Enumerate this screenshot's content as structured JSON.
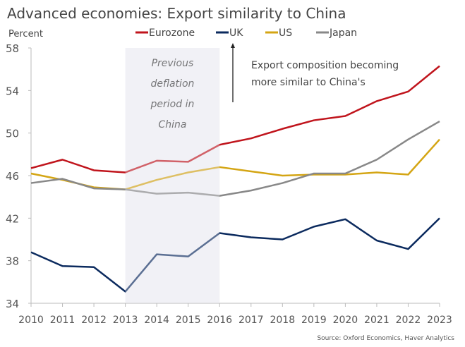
{
  "chart_data": {
    "type": "line",
    "title": "Advanced economies: Export similarity to China",
    "ylabel": "Percent",
    "xlabel": "",
    "ylim": [
      34,
      58
    ],
    "yticks": [
      34,
      38,
      42,
      46,
      50,
      54,
      58
    ],
    "x": [
      2010,
      2011,
      2012,
      2013,
      2014,
      2015,
      2016,
      2017,
      2018,
      2019,
      2020,
      2021,
      2022,
      2023
    ],
    "grid": false,
    "legend": "top",
    "series": [
      {
        "name": "Eurozone",
        "color": "#c0141c",
        "values": [
          46.7,
          47.5,
          46.5,
          46.3,
          47.4,
          47.3,
          48.9,
          49.5,
          50.4,
          51.2,
          51.6,
          53.0,
          53.9,
          56.3
        ]
      },
      {
        "name": "UK",
        "color": "#0b2a5e",
        "values": [
          38.8,
          37.5,
          37.4,
          35.1,
          38.6,
          38.4,
          40.6,
          40.2,
          40.0,
          41.2,
          41.9,
          39.9,
          39.1,
          42.0
        ]
      },
      {
        "name": "US",
        "color": "#d4a514",
        "values": [
          46.2,
          45.6,
          44.9,
          44.7,
          45.6,
          46.3,
          46.8,
          46.4,
          46.0,
          46.1,
          46.1,
          46.3,
          46.1,
          49.4
        ]
      },
      {
        "name": "Japan",
        "color": "#888888",
        "values": [
          45.3,
          45.7,
          44.8,
          44.7,
          44.3,
          44.4,
          44.1,
          44.6,
          45.3,
          46.2,
          46.2,
          47.5,
          49.4,
          51.1
        ]
      }
    ],
    "shaded_region": {
      "from": 2013,
      "to": 2016,
      "label": [
        "Previous",
        "deflation",
        "period in",
        "China"
      ]
    },
    "annotation": [
      "Export composition becoming",
      "more similar to China's"
    ],
    "source": "Source: Oxford Economics, Haver Analytics"
  }
}
